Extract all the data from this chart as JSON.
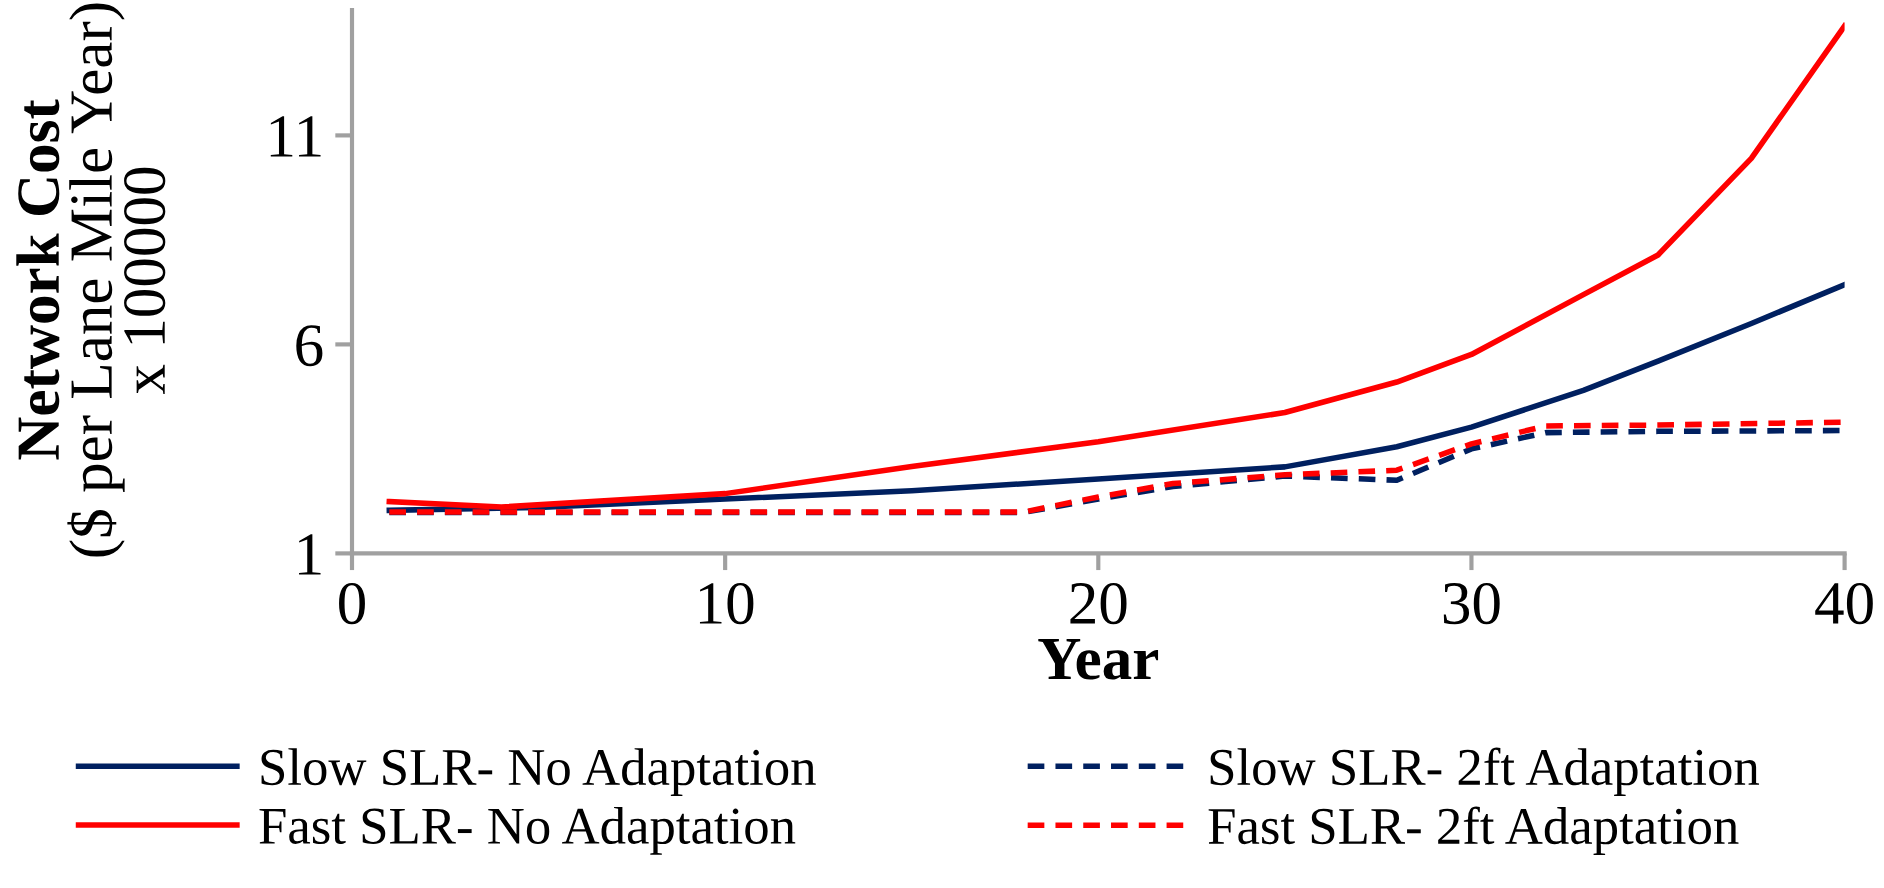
{
  "chart_data": {
    "type": "line",
    "xlabel": "Year",
    "ylabel": "Network Cost\n($ per Lane Mile Year)\nx 100000",
    "xlim": [
      0,
      40
    ],
    "xticks": [
      0,
      10,
      20,
      30,
      40
    ],
    "ylim": [
      1,
      14
    ],
    "yticks": [
      1,
      6,
      11
    ],
    "grid": false,
    "legend": "bottom",
    "marker": "none",
    "series": [
      {
        "name": "Slow SLR- No Adaptation",
        "color": "#002060",
        "line_style": "solid",
        "x": [
          1,
          5,
          10,
          15,
          20,
          25,
          28,
          30,
          33,
          35,
          37.5,
          40
        ],
        "values": [
          2.03,
          2.1,
          2.3,
          2.5,
          2.78,
          3.07,
          3.55,
          4.02,
          4.9,
          5.6,
          6.5,
          7.43
        ]
      },
      {
        "name": "Slow SLR- 2ft Adaptation",
        "color": "#002060",
        "line_style": "dashed",
        "x": [
          1,
          5,
          10,
          15,
          18,
          20,
          22,
          25,
          28,
          30,
          32,
          35,
          40
        ],
        "values": [
          1.98,
          1.98,
          1.98,
          1.98,
          1.98,
          2.3,
          2.6,
          2.85,
          2.75,
          3.5,
          3.89,
          3.92,
          3.94
        ]
      },
      {
        "name": "Fast SLR- No Adaptation",
        "color": "#ff0000",
        "line_style": "solid",
        "x": [
          1,
          4,
          10,
          15,
          20,
          25,
          28,
          30,
          33,
          35,
          37.5,
          40
        ],
        "values": [
          2.24,
          2.11,
          2.43,
          3.08,
          3.67,
          4.37,
          5.1,
          5.76,
          7.19,
          8.14,
          10.45,
          13.62
        ]
      },
      {
        "name": "Fast SLR- 2ft Adaptation",
        "color": "#ff0000",
        "line_style": "dashed",
        "x": [
          1,
          5,
          10,
          15,
          18,
          20,
          22,
          25,
          28,
          30,
          32,
          35,
          40
        ],
        "values": [
          1.99,
          1.99,
          1.99,
          1.99,
          1.99,
          2.35,
          2.67,
          2.88,
          2.99,
          3.62,
          4.05,
          4.07,
          4.14
        ]
      }
    ]
  }
}
